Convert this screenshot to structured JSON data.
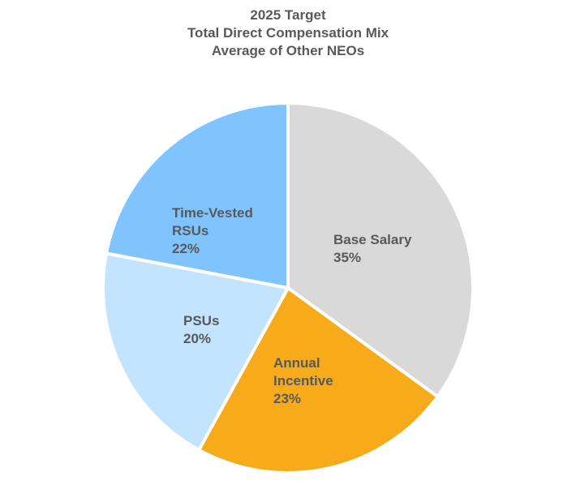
{
  "chart_data": {
    "type": "pie",
    "title_lines": [
      "2025 Target",
      "Total Direct Compensation Mix",
      "Average of Other NEOs"
    ],
    "slices": [
      {
        "name": "Base Salary",
        "label_lines": [
          "Base Salary"
        ],
        "value": 35,
        "value_label": "35%",
        "color": "#d9d9d9"
      },
      {
        "name": "Annual Incentive",
        "label_lines": [
          "Annual",
          "Incentive"
        ],
        "value": 23,
        "value_label": "23%",
        "color": "#f7ab1b"
      },
      {
        "name": "PSUs",
        "label_lines": [
          "PSUs"
        ],
        "value": 20,
        "value_label": "20%",
        "color": "#c3e4ff"
      },
      {
        "name": "Time-Vested RSUs",
        "label_lines": [
          "Time-Vested",
          "RSUs"
        ],
        "value": 22,
        "value_label": "22%",
        "color": "#80c4ff"
      }
    ],
    "start_angle": "12 o'clock",
    "direction": "clockwise",
    "label_color": "#595959",
    "legend": "none"
  }
}
